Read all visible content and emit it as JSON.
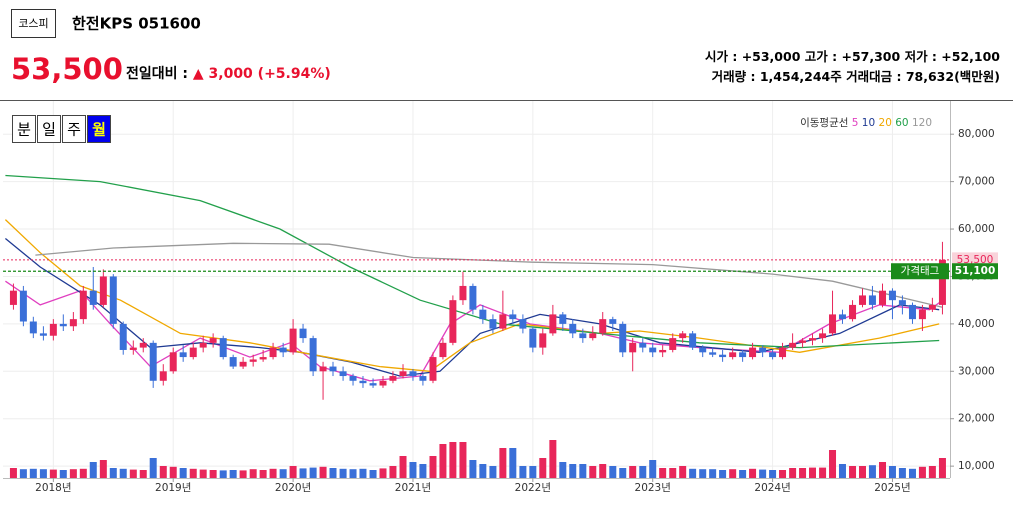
{
  "header": {
    "market": "코스피",
    "name": "한전KPS 051600",
    "price": "53,500",
    "change_label": "전일대비 :",
    "change": "▲ 3,000 (+5.94%)",
    "open_label": "시가 :",
    "open": "+53,000",
    "high_label": "고가 :",
    "high": "+57,300",
    "low_label": "저가 :",
    "low": "+52,100",
    "volume_label": "거래량 :",
    "volume": "1,454,244주",
    "amount_label": "거래대금 :",
    "amount": "78,632(백만원)"
  },
  "periods": {
    "items": [
      "분",
      "일",
      "주",
      "월"
    ],
    "selected": 3
  },
  "chart_data": {
    "type": "candlestick",
    "up_color": "#e8265a",
    "down_color": "#3a6fd8",
    "grid": true,
    "xlim": [
      2017.58,
      2025.48
    ],
    "ylim": [
      7500,
      87000
    ],
    "xticks": [
      {
        "value": 2018,
        "label": "2018년"
      },
      {
        "value": 2019,
        "label": "2019년"
      },
      {
        "value": 2020,
        "label": "2020년"
      },
      {
        "value": 2021,
        "label": "2021년"
      },
      {
        "value": 2022,
        "label": "2022년"
      },
      {
        "value": 2023,
        "label": "2023년"
      },
      {
        "value": 2024,
        "label": "2024년"
      },
      {
        "value": 2025,
        "label": "2025년"
      }
    ],
    "yticks": [
      {
        "value": 10000,
        "label": "10,000"
      },
      {
        "value": 20000,
        "label": "20,000"
      },
      {
        "value": 30000,
        "label": "30,000"
      },
      {
        "value": 40000,
        "label": "40,000"
      },
      {
        "value": 50000,
        "label": "50,000"
      },
      {
        "value": 60000,
        "label": "60,000"
      },
      {
        "value": 70000,
        "label": "70,000"
      },
      {
        "value": 80000,
        "label": "80,000"
      }
    ],
    "x": [
      2017.667,
      2017.75,
      2017.833,
      2017.917,
      2018.0,
      2018.083,
      2018.167,
      2018.25,
      2018.333,
      2018.417,
      2018.5,
      2018.583,
      2018.667,
      2018.75,
      2018.833,
      2018.917,
      2019.0,
      2019.083,
      2019.167,
      2019.25,
      2019.333,
      2019.417,
      2019.5,
      2019.583,
      2019.667,
      2019.75,
      2019.833,
      2019.917,
      2020.0,
      2020.083,
      2020.167,
      2020.25,
      2020.333,
      2020.417,
      2020.5,
      2020.583,
      2020.667,
      2020.75,
      2020.833,
      2020.917,
      2021.0,
      2021.083,
      2021.167,
      2021.25,
      2021.333,
      2021.417,
      2021.5,
      2021.583,
      2021.667,
      2021.75,
      2021.833,
      2021.917,
      2022.0,
      2022.083,
      2022.167,
      2022.25,
      2022.333,
      2022.417,
      2022.5,
      2022.583,
      2022.667,
      2022.75,
      2022.833,
      2022.917,
      2023.0,
      2023.083,
      2023.167,
      2023.25,
      2023.333,
      2023.417,
      2023.5,
      2023.583,
      2023.667,
      2023.75,
      2023.833,
      2023.917,
      2024.0,
      2024.083,
      2024.167,
      2024.25,
      2024.333,
      2024.417,
      2024.5,
      2024.583,
      2024.667,
      2024.75,
      2024.833,
      2024.917,
      2025.0,
      2025.083,
      2025.167,
      2025.25,
      2025.333,
      2025.417
    ],
    "ohlc": [
      [
        44000,
        48500,
        43000,
        47000
      ],
      [
        47000,
        48000,
        39500,
        40500
      ],
      [
        40500,
        41500,
        37000,
        38000
      ],
      [
        38000,
        39500,
        36500,
        37500
      ],
      [
        37500,
        41000,
        36500,
        40000
      ],
      [
        40000,
        42000,
        38500,
        39500
      ],
      [
        39500,
        42500,
        38500,
        41000
      ],
      [
        41000,
        48000,
        40000,
        47000
      ],
      [
        47000,
        52000,
        43000,
        44000
      ],
      [
        44000,
        51500,
        43500,
        50000
      ],
      [
        50000,
        50500,
        39000,
        40000
      ],
      [
        40000,
        40500,
        33500,
        34500
      ],
      [
        34500,
        36500,
        33500,
        35000
      ],
      [
        35000,
        37000,
        34000,
        36000
      ],
      [
        36000,
        36500,
        26500,
        28000
      ],
      [
        28000,
        31500,
        27000,
        30000
      ],
      [
        30000,
        35000,
        29500,
        34000
      ],
      [
        34000,
        35500,
        32000,
        33000
      ],
      [
        33000,
        36000,
        32500,
        35000
      ],
      [
        35000,
        37500,
        34000,
        36000
      ],
      [
        36000,
        38000,
        35000,
        37000
      ],
      [
        37000,
        37500,
        32500,
        33000
      ],
      [
        33000,
        33500,
        30500,
        31000
      ],
      [
        31000,
        33000,
        30500,
        32000
      ],
      [
        32000,
        33500,
        31000,
        32500
      ],
      [
        32500,
        34500,
        32000,
        33000
      ],
      [
        33000,
        36000,
        32500,
        35000
      ],
      [
        35000,
        36000,
        33000,
        34000
      ],
      [
        34000,
        41000,
        33500,
        39000
      ],
      [
        39000,
        40000,
        36000,
        37000
      ],
      [
        37000,
        37500,
        29000,
        30000
      ],
      [
        30000,
        32000,
        24000,
        31000
      ],
      [
        31000,
        32000,
        29000,
        30000
      ],
      [
        30000,
        31000,
        28000,
        29000
      ],
      [
        29000,
        29500,
        27000,
        28000
      ],
      [
        28000,
        29000,
        26500,
        27500
      ],
      [
        27500,
        28500,
        26500,
        27000
      ],
      [
        27000,
        29000,
        26500,
        28000
      ],
      [
        28000,
        30000,
        27500,
        29000
      ],
      [
        29000,
        31500,
        28500,
        30000
      ],
      [
        30000,
        30500,
        28000,
        29000
      ],
      [
        29000,
        29500,
        27000,
        28000
      ],
      [
        28000,
        34000,
        27500,
        33000
      ],
      [
        33000,
        37000,
        32500,
        36000
      ],
      [
        36000,
        46000,
        35500,
        45000
      ],
      [
        45000,
        51000,
        44000,
        48000
      ],
      [
        48000,
        48500,
        42000,
        43000
      ],
      [
        43000,
        44000,
        40000,
        41000
      ],
      [
        41000,
        42000,
        38000,
        39000
      ],
      [
        39000,
        47000,
        38500,
        42000
      ],
      [
        42000,
        43000,
        40000,
        41000
      ],
      [
        41000,
        42000,
        38000,
        39000
      ],
      [
        39000,
        39500,
        34000,
        35000
      ],
      [
        35000,
        39000,
        33500,
        38000
      ],
      [
        38000,
        44000,
        37500,
        42000
      ],
      [
        42000,
        42500,
        38500,
        40000
      ],
      [
        40000,
        41000,
        37000,
        38000
      ],
      [
        38000,
        39000,
        36000,
        37000
      ],
      [
        37000,
        39500,
        36500,
        38000
      ],
      [
        38000,
        42500,
        37500,
        41000
      ],
      [
        41000,
        41500,
        38500,
        40000
      ],
      [
        40000,
        40500,
        33000,
        34000
      ],
      [
        34000,
        37000,
        30000,
        36000
      ],
      [
        36000,
        37000,
        34000,
        35000
      ],
      [
        35000,
        36000,
        33000,
        34000
      ],
      [
        34000,
        35500,
        33000,
        34500
      ],
      [
        34500,
        38000,
        34000,
        37000
      ],
      [
        37000,
        38500,
        36000,
        38000
      ],
      [
        38000,
        38500,
        34500,
        35000
      ],
      [
        35000,
        35500,
        33000,
        34000
      ],
      [
        34000,
        35000,
        33000,
        33500
      ],
      [
        33500,
        34500,
        32000,
        33000
      ],
      [
        33000,
        35000,
        32500,
        34000
      ],
      [
        34000,
        34500,
        32000,
        33000
      ],
      [
        33000,
        36000,
        32500,
        35000
      ],
      [
        35000,
        35500,
        33000,
        34000
      ],
      [
        34000,
        34500,
        32500,
        33000
      ],
      [
        33000,
        36000,
        32500,
        35000
      ],
      [
        35000,
        38000,
        34500,
        36000
      ],
      [
        36000,
        37000,
        35000,
        36500
      ],
      [
        36500,
        38000,
        35500,
        37000
      ],
      [
        37000,
        39000,
        36000,
        38000
      ],
      [
        38000,
        47000,
        37500,
        42000
      ],
      [
        42000,
        43000,
        40000,
        41000
      ],
      [
        41000,
        45000,
        40500,
        44000
      ],
      [
        44000,
        47500,
        43500,
        46000
      ],
      [
        46000,
        48000,
        43000,
        44000
      ],
      [
        44000,
        48500,
        43500,
        47000
      ],
      [
        47000,
        47500,
        41000,
        45000
      ],
      [
        45000,
        46000,
        42000,
        44000
      ],
      [
        44000,
        44500,
        40000,
        41000
      ],
      [
        41000,
        44000,
        38500,
        43000
      ],
      [
        43000,
        45500,
        42500,
        44000
      ],
      [
        44000,
        57300,
        42000,
        53500
      ]
    ],
    "volume": [
      2500000,
      2200000,
      2300000,
      2200000,
      2100000,
      2000000,
      2200000,
      2300000,
      4000000,
      4500000,
      2500000,
      2300000,
      2100000,
      2000000,
      5000000,
      3000000,
      2800000,
      2500000,
      2300000,
      2100000,
      2000000,
      1900000,
      2000000,
      1900000,
      2200000,
      2000000,
      2300000,
      2200000,
      3000000,
      2400000,
      2600000,
      2800000,
      2500000,
      2300000,
      2200000,
      2300000,
      2000000,
      2400000,
      3000000,
      5500000,
      4000000,
      3500000,
      5500000,
      8500000,
      9000000,
      9000000,
      4500000,
      3500000,
      3000000,
      7500000,
      7500000,
      3000000,
      3000000,
      5000000,
      9500000,
      4000000,
      3500000,
      3500000,
      3000000,
      3500000,
      3000000,
      2500000,
      3000000,
      3000000,
      4500000,
      2500000,
      2500000,
      3000000,
      2300000,
      2200000,
      2200000,
      2000000,
      2200000,
      2000000,
      2300000,
      2100000,
      2000000,
      2000000,
      2500000,
      2500000,
      2600000,
      2600000,
      7000000,
      3500000,
      3000000,
      3000000,
      3200000,
      4000000,
      3000000,
      2500000,
      2300000,
      2800000,
      3000000,
      5000000
    ],
    "vlim": [
      0,
      10000000
    ],
    "ma_title": "이동평균선",
    "ma": [
      {
        "name": "5",
        "color": "#e040c0",
        "x": [
          2017.6,
          2017.89,
          2018.225,
          2018.475,
          2018.81,
          2019.225,
          2019.64,
          2019.975,
          2020.225,
          2020.64,
          2021.06,
          2021.31,
          2021.56,
          2021.975,
          2022.56,
          2022.89,
          2023.39,
          2024.06,
          2024.475,
          2024.89,
          2025.31,
          2025.42
        ],
        "values": [
          49000,
          44000,
          47000,
          40000,
          31000,
          37000,
          33000,
          36000,
          31000,
          28000,
          29000,
          40000,
          44000,
          40000,
          38000,
          36000,
          35000,
          34000,
          40000,
          44000,
          43000,
          45000
        ]
      },
      {
        "name": "10",
        "color": "#1f3a93",
        "x": [
          2017.6,
          2017.89,
          2018.39,
          2018.81,
          2019.225,
          2019.725,
          2020.06,
          2020.475,
          2020.89,
          2021.225,
          2021.56,
          2022.06,
          2022.56,
          2023.06,
          2023.89,
          2024.56,
          2025.06,
          2025.39
        ],
        "values": [
          58000,
          52000,
          44000,
          35000,
          36000,
          35000,
          34000,
          32000,
          29000,
          30000,
          38000,
          42000,
          40000,
          36000,
          34000,
          38000,
          44000,
          43000
        ]
      },
      {
        "name": "20",
        "color": "#f0a800",
        "x": [
          2017.6,
          2017.89,
          2018.225,
          2018.56,
          2019.06,
          2019.64,
          2020.06,
          2020.725,
          2021.14,
          2021.475,
          2021.89,
          2022.56,
          2022.89,
          2023.39,
          2024.225,
          2024.89,
          2025.39
        ],
        "values": [
          62000,
          55000,
          48000,
          45000,
          38000,
          36000,
          34000,
          31000,
          30000,
          36000,
          40000,
          38000,
          38500,
          37000,
          34000,
          37000,
          40000
        ]
      },
      {
        "name": "60",
        "color": "#22a04b",
        "x": [
          2017.6,
          2018.39,
          2019.225,
          2019.89,
          2020.475,
          2021.06,
          2021.725,
          2022.56,
          2023.39,
          2024.225,
          2025.39
        ],
        "values": [
          71300,
          70000,
          66000,
          60000,
          52000,
          45000,
          40000,
          38000,
          36000,
          35000,
          36500
        ]
      },
      {
        "name": "120",
        "color": "#999999",
        "x": [
          2017.85,
          2018.5,
          2019.5,
          2020.3,
          2021.0,
          2022.0,
          2023.0,
          2024.0,
          2024.5,
          2025.0,
          2025.417
        ],
        "values": [
          54500,
          56000,
          57000,
          56800,
          54000,
          53000,
          52500,
          50500,
          49000,
          46000,
          43500
        ]
      }
    ],
    "price_line": {
      "value": 53500,
      "label": "53,500",
      "color": "#e8265a"
    },
    "tag_line": {
      "value": 51100,
      "label": "51,100",
      "tag": "가격태그",
      "color": "#1a8a1a"
    }
  }
}
